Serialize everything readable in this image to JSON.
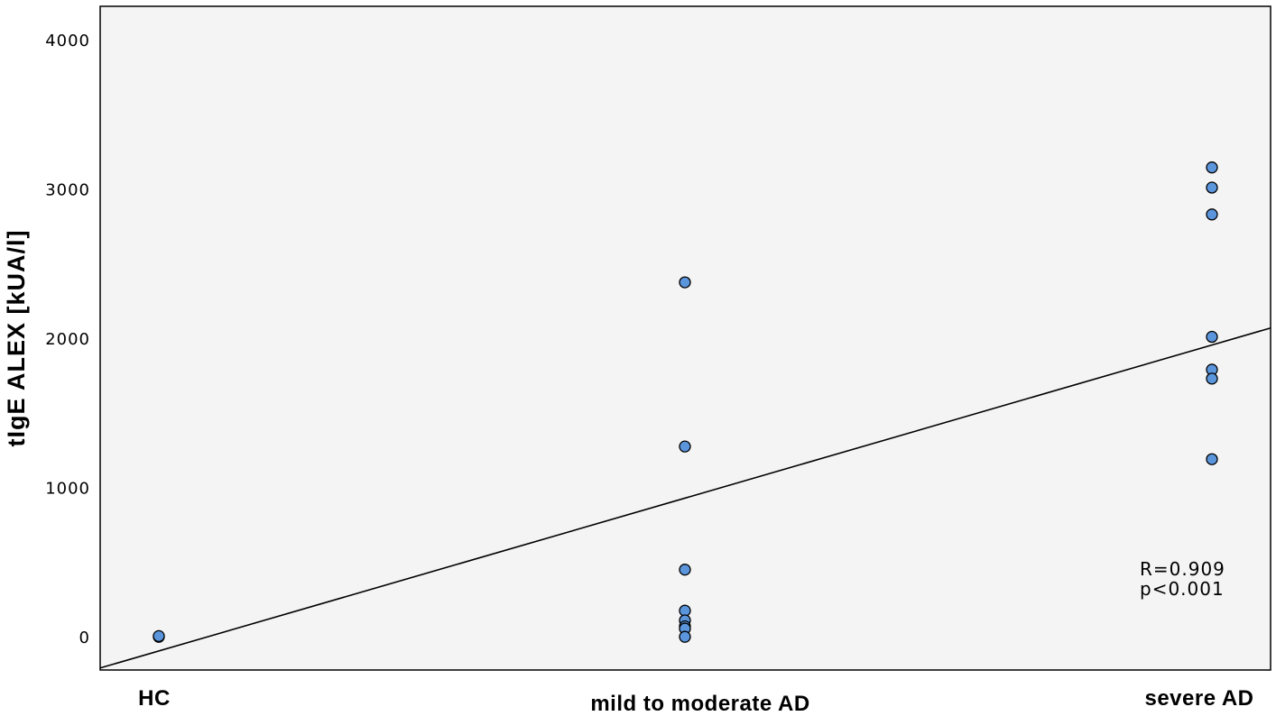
{
  "chart_data": {
    "type": "scatter",
    "title": "",
    "xlabel": "",
    "ylabel": "tIgE ALEX [kUA/l]",
    "categories": [
      "HC",
      "mild to moderate AD",
      "severe AD"
    ],
    "yticks": [
      "0",
      "1000",
      "2000",
      "3000",
      "4000"
    ],
    "ylim": [
      -220,
      4220
    ],
    "grid": false,
    "series": [
      {
        "points": [
          {
            "x": "HC",
            "y": 5
          },
          {
            "x": "HC",
            "y": 10
          },
          {
            "x": "mild to moderate AD",
            "y": 2380
          },
          {
            "x": "mild to moderate AD",
            "y": 1280
          },
          {
            "x": "mild to moderate AD",
            "y": 455
          },
          {
            "x": "mild to moderate AD",
            "y": 180
          },
          {
            "x": "mild to moderate AD",
            "y": 115
          },
          {
            "x": "mild to moderate AD",
            "y": 75
          },
          {
            "x": "mild to moderate AD",
            "y": 60
          },
          {
            "x": "mild to moderate AD",
            "y": 5
          },
          {
            "x": "severe AD",
            "y": 3150
          },
          {
            "x": "severe AD",
            "y": 3015
          },
          {
            "x": "severe AD",
            "y": 2835
          },
          {
            "x": "severe AD",
            "y": 2015
          },
          {
            "x": "severe AD",
            "y": 1795
          },
          {
            "x": "severe AD",
            "y": 1735
          },
          {
            "x": "severe AD",
            "y": 1195
          }
        ],
        "color": "#5b95dc"
      }
    ],
    "fit_line": {
      "type": "linear",
      "start": {
        "x": "HC",
        "y": -90
      },
      "end": {
        "x": "severe AD",
        "y": 1960
      }
    },
    "annotations": [
      "R=0.909",
      "p<0.001"
    ]
  }
}
